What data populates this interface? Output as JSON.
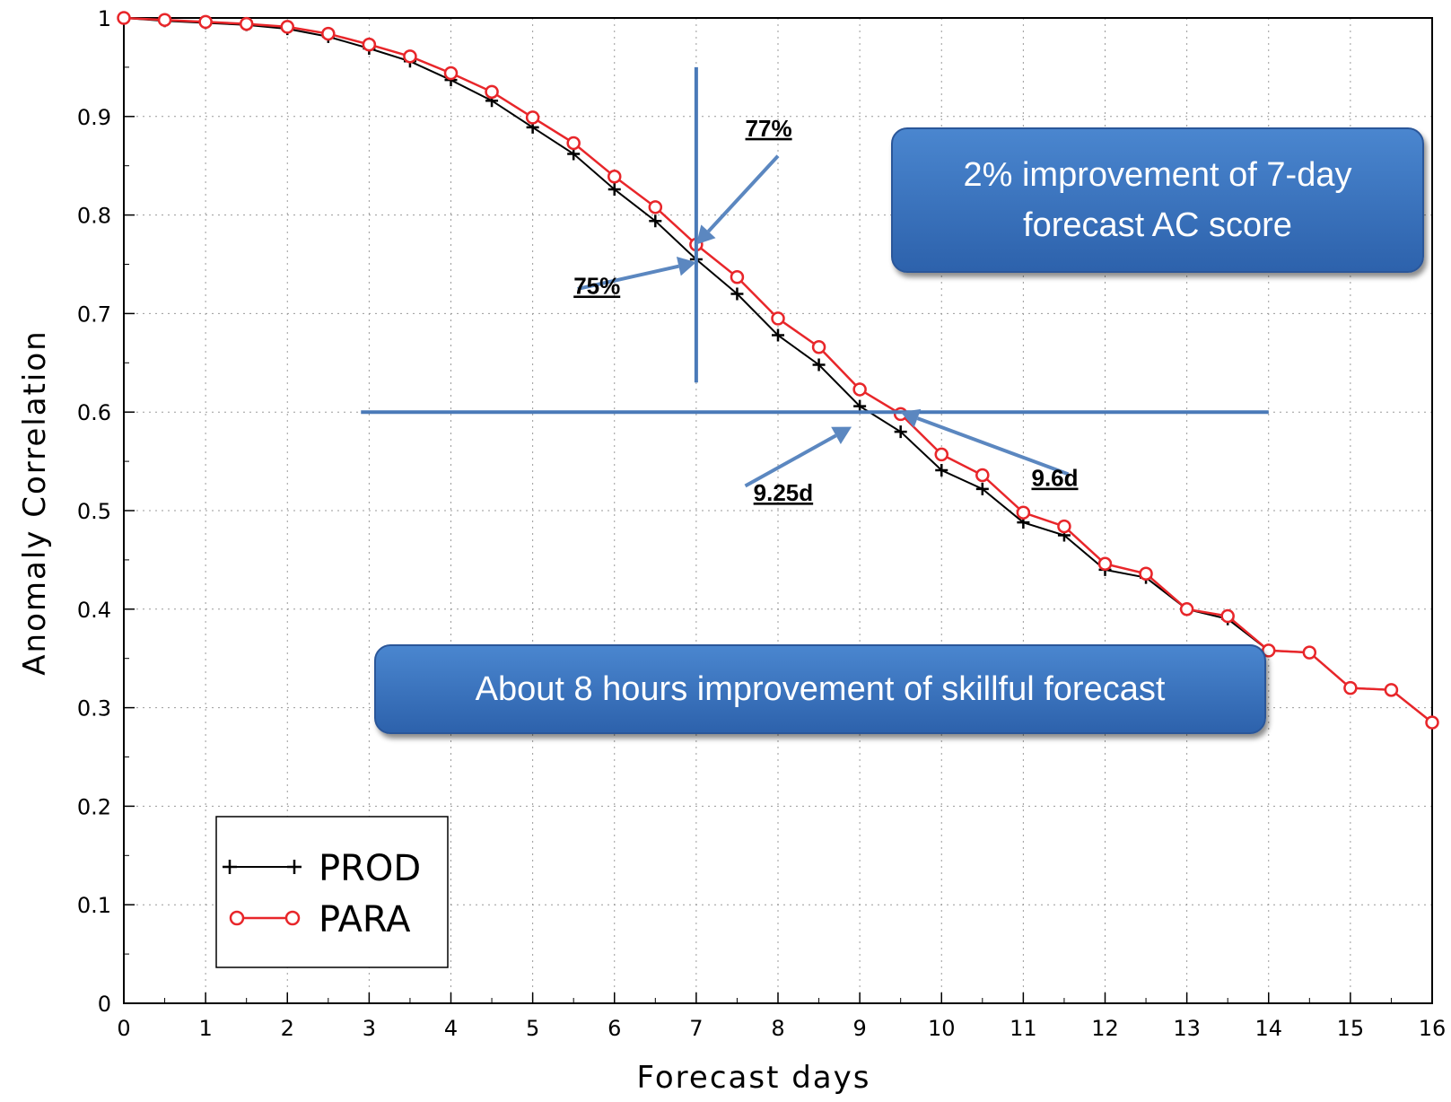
{
  "chart_data": {
    "type": "line",
    "title": "",
    "xlabel": "Forecast days",
    "ylabel": "Anomaly Correlation",
    "xlim": [
      0,
      16
    ],
    "ylim": [
      0,
      1
    ],
    "xticks": [
      "0",
      "1",
      "2",
      "3",
      "4",
      "5",
      "6",
      "7",
      "8",
      "9",
      "10",
      "11",
      "12",
      "13",
      "14",
      "15",
      "16"
    ],
    "yticks": [
      "0",
      "0.1",
      "0.2",
      "0.3",
      "0.4",
      "0.5",
      "0.6",
      "0.7",
      "0.8",
      "0.9",
      "1"
    ],
    "grid": true,
    "legend_position": "bottom-left",
    "x": [
      0,
      0.5,
      1,
      1.5,
      2,
      2.5,
      3,
      3.5,
      4,
      4.5,
      5,
      5.5,
      6,
      6.5,
      7,
      7.5,
      8,
      8.5,
      9,
      9.5,
      10,
      10.5,
      11,
      11.5,
      12,
      12.5,
      13,
      13.5,
      14,
      14.5,
      15,
      15.5,
      16
    ],
    "series": [
      {
        "name": "PROD",
        "color": "#000000",
        "marker": "plus",
        "values": [
          1.0,
          0.997,
          0.995,
          0.993,
          0.989,
          0.981,
          0.969,
          0.956,
          0.937,
          0.916,
          0.889,
          0.862,
          0.826,
          0.794,
          0.755,
          0.72,
          0.678,
          0.648,
          0.606,
          0.58,
          0.541,
          0.522,
          0.488,
          0.475,
          0.44,
          0.432,
          0.4,
          0.39,
          0.358,
          0.356,
          0.32,
          0.318,
          0.285
        ]
      },
      {
        "name": "PARA",
        "color": "#e8262a",
        "marker": "circle",
        "values": [
          1.0,
          0.998,
          0.996,
          0.994,
          0.991,
          0.984,
          0.973,
          0.961,
          0.944,
          0.925,
          0.899,
          0.873,
          0.839,
          0.808,
          0.77,
          0.737,
          0.695,
          0.666,
          0.623,
          0.598,
          0.557,
          0.536,
          0.498,
          0.484,
          0.446,
          0.436,
          0.4,
          0.393,
          0.358,
          0.356,
          0.32,
          0.318,
          0.285
        ]
      }
    ],
    "reference_lines": [
      {
        "orientation": "vertical",
        "x": 7,
        "y_range": [
          0.63,
          0.95
        ]
      },
      {
        "orientation": "horizontal",
        "y": 0.6,
        "x_range": [
          2.9,
          14.0
        ]
      }
    ],
    "annotations": [
      {
        "text": "77%",
        "x": 7.6,
        "y": 0.88,
        "arrow_to": [
          7.0,
          0.77
        ]
      },
      {
        "text": "75%",
        "x": 5.5,
        "y": 0.72,
        "arrow_to": [
          7.0,
          0.752
        ]
      },
      {
        "text": "9.25d",
        "x": 7.7,
        "y": 0.51,
        "arrow_to": [
          8.9,
          0.585
        ]
      },
      {
        "text": "9.6d",
        "x": 11.1,
        "y": 0.525,
        "arrow_to": [
          9.5,
          0.6
        ]
      }
    ],
    "callouts": [
      {
        "lines": [
          "2% improvement of 7-day",
          "forecast AC score"
        ]
      },
      {
        "lines": [
          "About 8 hours improvement of skillful forecast"
        ]
      }
    ]
  },
  "colors": {
    "reference_line": "#4a7ab8",
    "arrow": "#5b87c0",
    "callout": "#3a74c0"
  }
}
